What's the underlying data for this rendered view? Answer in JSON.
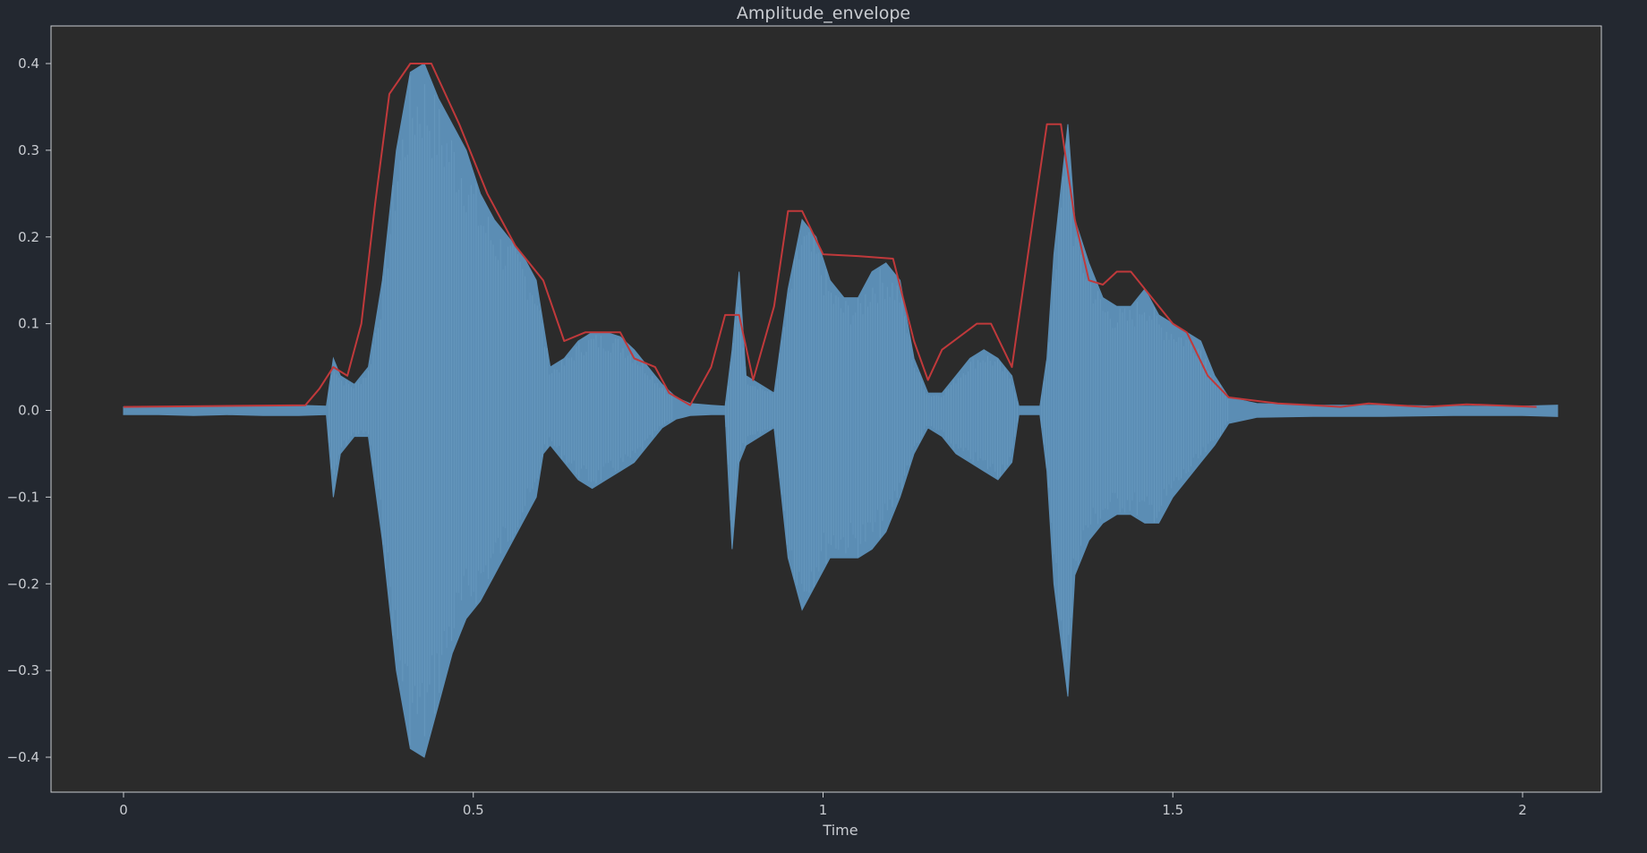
{
  "chart_data": {
    "type": "line",
    "title": "Amplitude_envelope",
    "xlabel": "Time",
    "ylabel": "",
    "xlim": [
      -0.1,
      2.16
    ],
    "ylim": [
      -0.44,
      0.44
    ],
    "x_ticks": [
      0,
      0.5,
      1,
      1.5,
      2
    ],
    "x_tick_labels": [
      "0",
      "0.5",
      "1",
      "1.5",
      "2"
    ],
    "y_ticks": [
      0.4,
      0.3,
      0.2,
      0.1,
      0.0,
      -0.1,
      -0.2,
      -0.3,
      -0.4
    ],
    "y_tick_labels": [
      "0.4",
      "0.3",
      "0.2",
      "0.1",
      "0.0",
      "−0.1",
      "−0.2",
      "−0.3",
      "−0.4"
    ],
    "grid": false,
    "colors": {
      "figure_background": "#232830",
      "plot_background": "#2b2b2b",
      "axes": "#c9ccd1",
      "waveform": "#5b8db4",
      "envelope": "#c0393b"
    },
    "series": [
      {
        "kind": "waveform",
        "upper": [
          [
            0.0,
            0.004
          ],
          [
            0.05,
            0.004
          ],
          [
            0.1,
            0.005
          ],
          [
            0.15,
            0.004
          ],
          [
            0.2,
            0.005
          ],
          [
            0.25,
            0.006
          ],
          [
            0.29,
            0.005
          ],
          [
            0.3,
            0.06
          ],
          [
            0.31,
            0.04
          ],
          [
            0.33,
            0.03
          ],
          [
            0.35,
            0.05
          ],
          [
            0.37,
            0.15
          ],
          [
            0.39,
            0.3
          ],
          [
            0.41,
            0.39
          ],
          [
            0.43,
            0.4
          ],
          [
            0.45,
            0.36
          ],
          [
            0.47,
            0.33
          ],
          [
            0.49,
            0.3
          ],
          [
            0.51,
            0.25
          ],
          [
            0.53,
            0.22
          ],
          [
            0.55,
            0.2
          ],
          [
            0.57,
            0.18
          ],
          [
            0.59,
            0.15
          ],
          [
            0.6,
            0.1
          ],
          [
            0.61,
            0.05
          ],
          [
            0.63,
            0.06
          ],
          [
            0.65,
            0.08
          ],
          [
            0.67,
            0.09
          ],
          [
            0.69,
            0.09
          ],
          [
            0.71,
            0.085
          ],
          [
            0.73,
            0.07
          ],
          [
            0.75,
            0.05
          ],
          [
            0.77,
            0.03
          ],
          [
            0.79,
            0.015
          ],
          [
            0.81,
            0.008
          ],
          [
            0.84,
            0.006
          ],
          [
            0.86,
            0.005
          ],
          [
            0.87,
            0.07
          ],
          [
            0.88,
            0.16
          ],
          [
            0.89,
            0.04
          ],
          [
            0.91,
            0.03
          ],
          [
            0.93,
            0.02
          ],
          [
            0.95,
            0.14
          ],
          [
            0.97,
            0.22
          ],
          [
            0.99,
            0.2
          ],
          [
            1.01,
            0.15
          ],
          [
            1.03,
            0.13
          ],
          [
            1.05,
            0.13
          ],
          [
            1.07,
            0.16
          ],
          [
            1.09,
            0.17
          ],
          [
            1.11,
            0.15
          ],
          [
            1.13,
            0.06
          ],
          [
            1.15,
            0.02
          ],
          [
            1.17,
            0.02
          ],
          [
            1.19,
            0.04
          ],
          [
            1.21,
            0.06
          ],
          [
            1.23,
            0.07
          ],
          [
            1.25,
            0.06
          ],
          [
            1.27,
            0.04
          ],
          [
            1.28,
            0.005
          ],
          [
            1.31,
            0.005
          ],
          [
            1.32,
            0.06
          ],
          [
            1.33,
            0.18
          ],
          [
            1.35,
            0.33
          ],
          [
            1.36,
            0.22
          ],
          [
            1.38,
            0.17
          ],
          [
            1.4,
            0.13
          ],
          [
            1.42,
            0.12
          ],
          [
            1.44,
            0.12
          ],
          [
            1.46,
            0.14
          ],
          [
            1.48,
            0.11
          ],
          [
            1.5,
            0.1
          ],
          [
            1.52,
            0.09
          ],
          [
            1.54,
            0.08
          ],
          [
            1.56,
            0.04
          ],
          [
            1.58,
            0.015
          ],
          [
            1.62,
            0.008
          ],
          [
            1.7,
            0.006
          ],
          [
            1.8,
            0.006
          ],
          [
            1.9,
            0.005
          ],
          [
            2.0,
            0.005
          ],
          [
            2.05,
            0.006
          ]
        ],
        "lower": [
          [
            0.0,
            -0.005
          ],
          [
            0.05,
            -0.005
          ],
          [
            0.1,
            -0.006
          ],
          [
            0.15,
            -0.005
          ],
          [
            0.2,
            -0.006
          ],
          [
            0.25,
            -0.006
          ],
          [
            0.29,
            -0.005
          ],
          [
            0.3,
            -0.1
          ],
          [
            0.31,
            -0.05
          ],
          [
            0.33,
            -0.03
          ],
          [
            0.35,
            -0.03
          ],
          [
            0.37,
            -0.15
          ],
          [
            0.39,
            -0.3
          ],
          [
            0.41,
            -0.39
          ],
          [
            0.43,
            -0.4
          ],
          [
            0.45,
            -0.34
          ],
          [
            0.47,
            -0.28
          ],
          [
            0.49,
            -0.24
          ],
          [
            0.51,
            -0.22
          ],
          [
            0.53,
            -0.19
          ],
          [
            0.55,
            -0.16
          ],
          [
            0.57,
            -0.13
          ],
          [
            0.59,
            -0.1
          ],
          [
            0.6,
            -0.05
          ],
          [
            0.61,
            -0.04
          ],
          [
            0.63,
            -0.06
          ],
          [
            0.65,
            -0.08
          ],
          [
            0.67,
            -0.09
          ],
          [
            0.69,
            -0.08
          ],
          [
            0.71,
            -0.07
          ],
          [
            0.73,
            -0.06
          ],
          [
            0.75,
            -0.04
          ],
          [
            0.77,
            -0.02
          ],
          [
            0.79,
            -0.01
          ],
          [
            0.81,
            -0.006
          ],
          [
            0.84,
            -0.005
          ],
          [
            0.86,
            -0.005
          ],
          [
            0.87,
            -0.16
          ],
          [
            0.88,
            -0.06
          ],
          [
            0.89,
            -0.04
          ],
          [
            0.91,
            -0.03
          ],
          [
            0.93,
            -0.02
          ],
          [
            0.95,
            -0.17
          ],
          [
            0.97,
            -0.23
          ],
          [
            0.99,
            -0.2
          ],
          [
            1.01,
            -0.17
          ],
          [
            1.03,
            -0.17
          ],
          [
            1.05,
            -0.17
          ],
          [
            1.07,
            -0.16
          ],
          [
            1.09,
            -0.14
          ],
          [
            1.11,
            -0.1
          ],
          [
            1.13,
            -0.05
          ],
          [
            1.15,
            -0.02
          ],
          [
            1.17,
            -0.03
          ],
          [
            1.19,
            -0.05
          ],
          [
            1.21,
            -0.06
          ],
          [
            1.23,
            -0.07
          ],
          [
            1.25,
            -0.08
          ],
          [
            1.27,
            -0.06
          ],
          [
            1.28,
            -0.005
          ],
          [
            1.31,
            -0.005
          ],
          [
            1.32,
            -0.07
          ],
          [
            1.33,
            -0.2
          ],
          [
            1.35,
            -0.33
          ],
          [
            1.36,
            -0.19
          ],
          [
            1.38,
            -0.15
          ],
          [
            1.4,
            -0.13
          ],
          [
            1.42,
            -0.12
          ],
          [
            1.44,
            -0.12
          ],
          [
            1.46,
            -0.13
          ],
          [
            1.48,
            -0.13
          ],
          [
            1.5,
            -0.1
          ],
          [
            1.52,
            -0.08
          ],
          [
            1.54,
            -0.06
          ],
          [
            1.56,
            -0.04
          ],
          [
            1.58,
            -0.015
          ],
          [
            1.62,
            -0.008
          ],
          [
            1.7,
            -0.007
          ],
          [
            1.8,
            -0.007
          ],
          [
            1.9,
            -0.006
          ],
          [
            2.0,
            -0.006
          ],
          [
            2.05,
            -0.007
          ]
        ]
      },
      {
        "kind": "envelope",
        "points": [
          [
            0.0,
            0.004
          ],
          [
            0.26,
            0.006
          ],
          [
            0.28,
            0.025
          ],
          [
            0.3,
            0.05
          ],
          [
            0.32,
            0.04
          ],
          [
            0.34,
            0.1
          ],
          [
            0.36,
            0.24
          ],
          [
            0.38,
            0.365
          ],
          [
            0.41,
            0.4
          ],
          [
            0.44,
            0.4
          ],
          [
            0.48,
            0.33
          ],
          [
            0.52,
            0.25
          ],
          [
            0.56,
            0.19
          ],
          [
            0.6,
            0.15
          ],
          [
            0.63,
            0.08
          ],
          [
            0.66,
            0.09
          ],
          [
            0.71,
            0.09
          ],
          [
            0.73,
            0.06
          ],
          [
            0.76,
            0.05
          ],
          [
            0.78,
            0.02
          ],
          [
            0.81,
            0.006
          ],
          [
            0.84,
            0.05
          ],
          [
            0.86,
            0.11
          ],
          [
            0.88,
            0.11
          ],
          [
            0.9,
            0.035
          ],
          [
            0.93,
            0.12
          ],
          [
            0.95,
            0.23
          ],
          [
            0.97,
            0.23
          ],
          [
            1.0,
            0.18
          ],
          [
            1.05,
            0.178
          ],
          [
            1.1,
            0.175
          ],
          [
            1.13,
            0.08
          ],
          [
            1.15,
            0.035
          ],
          [
            1.17,
            0.07
          ],
          [
            1.22,
            0.1
          ],
          [
            1.24,
            0.1
          ],
          [
            1.27,
            0.05
          ],
          [
            1.3,
            0.22
          ],
          [
            1.32,
            0.33
          ],
          [
            1.34,
            0.33
          ],
          [
            1.36,
            0.22
          ],
          [
            1.38,
            0.15
          ],
          [
            1.4,
            0.145
          ],
          [
            1.42,
            0.16
          ],
          [
            1.44,
            0.16
          ],
          [
            1.47,
            0.13
          ],
          [
            1.5,
            0.1
          ],
          [
            1.52,
            0.09
          ],
          [
            1.55,
            0.04
          ],
          [
            1.58,
            0.015
          ],
          [
            1.65,
            0.008
          ],
          [
            1.7,
            0.006
          ],
          [
            1.74,
            0.004
          ],
          [
            1.78,
            0.008
          ],
          [
            1.82,
            0.006
          ],
          [
            1.86,
            0.004
          ],
          [
            1.92,
            0.007
          ],
          [
            2.02,
            0.004
          ]
        ]
      }
    ]
  }
}
